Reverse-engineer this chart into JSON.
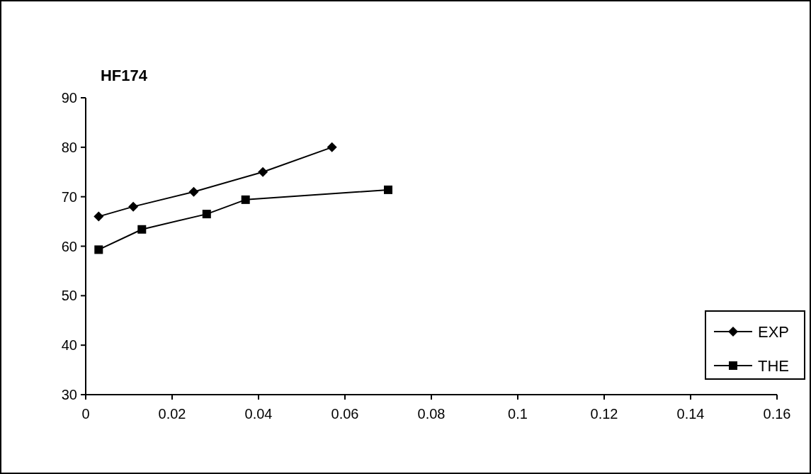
{
  "chart_data": {
    "type": "line",
    "title": "HF174",
    "xlim": [
      0,
      0.16
    ],
    "xticks": [
      0,
      0.02,
      0.04,
      0.06,
      0.08,
      0.1,
      0.12,
      0.14,
      0.16
    ],
    "ylim": [
      30,
      90
    ],
    "yticks": [
      30,
      40,
      50,
      60,
      70,
      80,
      90
    ],
    "grid": false,
    "legend": "right",
    "line_style": "solid",
    "series": [
      {
        "name": "EXP",
        "color": "#000000",
        "marker": "diamond",
        "x": [
          0.003,
          0.011,
          0.025,
          0.041,
          0.057
        ],
        "values": [
          66,
          68,
          71,
          75,
          80
        ]
      },
      {
        "name": "THE",
        "color": "#000000",
        "marker": "square",
        "x": [
          0.003,
          0.013,
          0.028,
          0.037,
          0.07
        ],
        "values": [
          59.3,
          63.4,
          66.5,
          69.4,
          71.4
        ]
      }
    ]
  }
}
